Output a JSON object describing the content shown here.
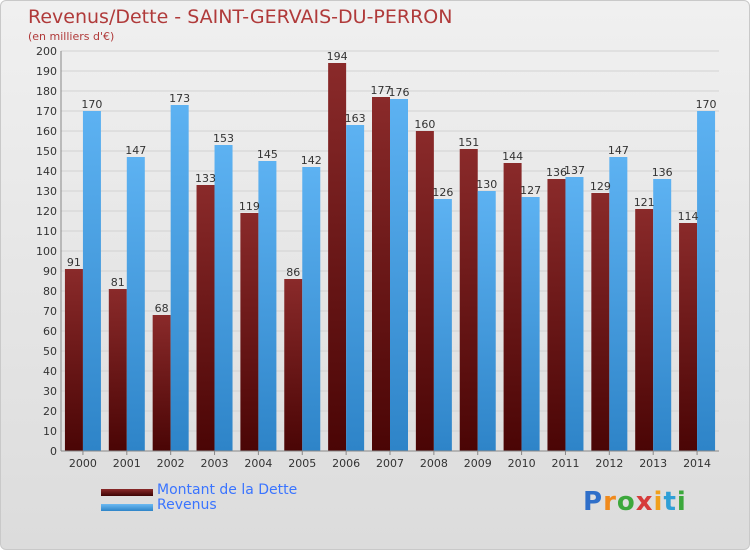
{
  "title": "Revenus/Dette - SAINT-GERVAIS-DU-PERRON",
  "subtitle": "(en milliers d'€)",
  "legend": {
    "dette_label": "Montant de la Dette",
    "revenus_label": "Revenus"
  },
  "logo": {
    "letters": [
      "P",
      "r",
      "o",
      "x",
      "i",
      "t",
      "i"
    ],
    "colors": [
      "#2f6fc9",
      "#f08a1c",
      "#3ca83c",
      "#d63b3b",
      "#f0a01c",
      "#2f9fd6",
      "#3ca83c"
    ]
  },
  "colors": {
    "dette": "#6b1414",
    "revenus": "#4ea6ea",
    "title": "#b03a3a"
  },
  "chart_data": {
    "type": "bar",
    "title": "Revenus/Dette - SAINT-GERVAIS-DU-PERRON",
    "subtitle": "(en milliers d'€)",
    "xlabel": "",
    "ylabel": "",
    "ylim": [
      0,
      200
    ],
    "ytick_step": 10,
    "grid": true,
    "categories": [
      "2000",
      "2001",
      "2002",
      "2003",
      "2004",
      "2005",
      "2006",
      "2007",
      "2008",
      "2009",
      "2010",
      "2011",
      "2012",
      "2013",
      "2014"
    ],
    "series": [
      {
        "name": "Montant de la Dette",
        "values": [
          91,
          81,
          68,
          133,
          119,
          86,
          194,
          177,
          160,
          151,
          144,
          136,
          129,
          121,
          114
        ]
      },
      {
        "name": "Revenus",
        "values": [
          170,
          147,
          173,
          153,
          145,
          142,
          163,
          176,
          126,
          130,
          127,
          137,
          147,
          136,
          170
        ]
      }
    ]
  }
}
